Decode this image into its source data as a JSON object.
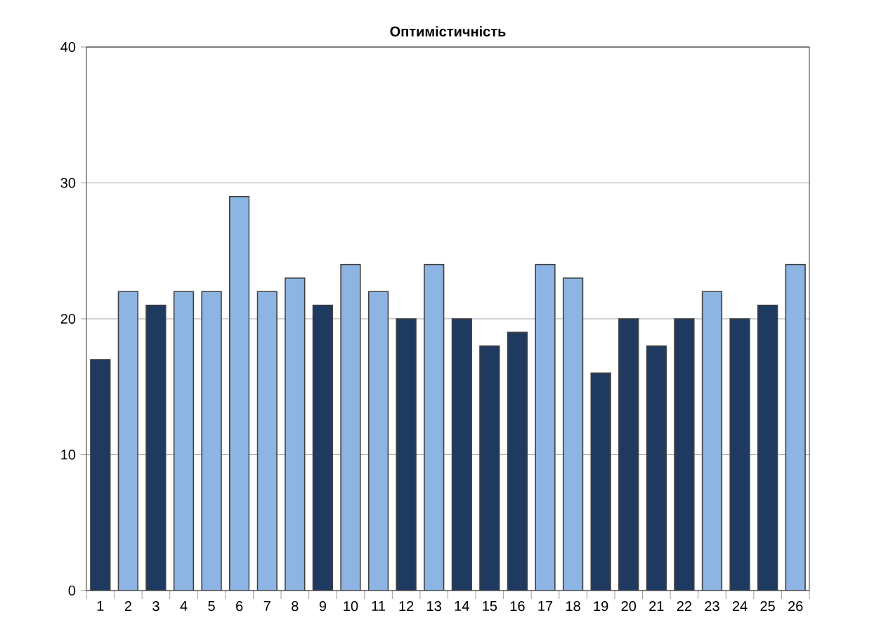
{
  "chart_data": {
    "type": "bar",
    "title": "Оптимістичність",
    "categories": [
      "1",
      "2",
      "3",
      "4",
      "5",
      "6",
      "7",
      "8",
      "9",
      "10",
      "11",
      "12",
      "13",
      "14",
      "15",
      "16",
      "17",
      "18",
      "19",
      "20",
      "21",
      "22",
      "23",
      "24",
      "25",
      "26"
    ],
    "values": [
      17,
      22,
      21,
      22,
      22,
      29,
      22,
      23,
      21,
      24,
      22,
      20,
      24,
      20,
      18,
      19,
      24,
      23,
      16,
      20,
      18,
      20,
      22,
      20,
      21,
      24
    ],
    "colors": [
      "#1f3a60",
      "#8db4e2",
      "#1f3a60",
      "#8db4e2",
      "#8db4e2",
      "#8db4e2",
      "#8db4e2",
      "#8db4e2",
      "#1f3a60",
      "#8db4e2",
      "#8db4e2",
      "#1f3a60",
      "#8db4e2",
      "#1f3a60",
      "#1f3a60",
      "#1f3a60",
      "#8db4e2",
      "#8db4e2",
      "#1f3a60",
      "#1f3a60",
      "#1f3a60",
      "#1f3a60",
      "#8db4e2",
      "#1f3a60",
      "#1f3a60",
      "#8db4e2"
    ],
    "ylim": [
      0,
      40
    ],
    "yticks": [
      0,
      10,
      20,
      30,
      40
    ],
    "grid": "y"
  }
}
